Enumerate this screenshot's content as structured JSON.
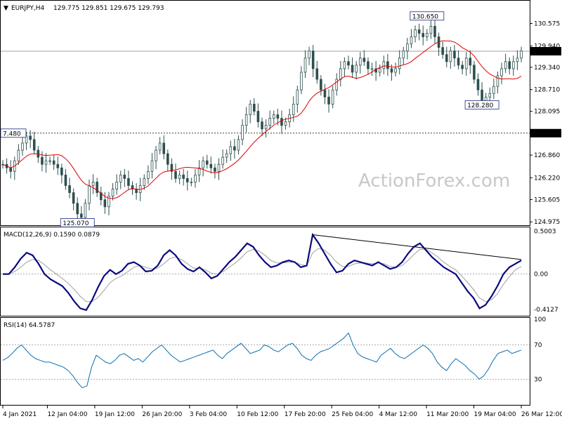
{
  "header": {
    "symbol": "EURJPY,H4",
    "ohlc": "129.775 129.851 129.675 129.793"
  },
  "watermark": "ActionForex.com",
  "colors": {
    "candles": "#2f4f4f",
    "ma": "#e00000",
    "macd": "#0a0a80",
    "signal": "#a0a0a0",
    "rsi": "#0a6fb0",
    "grid_dotted": "#909090",
    "price_line": "#808080",
    "trendline": "#000000"
  },
  "chart_data": [
    {
      "name": "price",
      "type": "candlestick",
      "ylim": [
        124.9,
        131.2
      ],
      "y_ticks": [
        "130.575",
        "129.940",
        "129.340",
        "128.710",
        "128.095",
        "126.860",
        "126.220",
        "125.605",
        "124.975"
      ],
      "current_price": "129.793",
      "support_level": "127.480",
      "annotations": [
        {
          "text": "130.650",
          "x_index": 108,
          "y": 130.65
        },
        {
          "text": "128.280",
          "x_index": 122,
          "y": 128.28
        },
        {
          "text": "125.070",
          "x_index": 19,
          "y": 125.07
        },
        {
          "text": "7.480",
          "x_index": 0,
          "y": 127.48
        }
      ],
      "close_series": [
        126.6,
        126.5,
        126.4,
        126.7,
        127.0,
        127.2,
        127.4,
        127.3,
        127.0,
        126.8,
        126.6,
        126.7,
        126.7,
        126.6,
        126.5,
        126.3,
        126.0,
        125.8,
        125.5,
        125.2,
        125.1,
        125.5,
        126.0,
        126.1,
        125.8,
        125.6,
        125.4,
        125.7,
        125.9,
        126.1,
        126.3,
        126.2,
        126.0,
        125.9,
        125.8,
        126.0,
        126.2,
        126.4,
        126.7,
        127.0,
        127.2,
        126.9,
        126.6,
        126.4,
        126.2,
        126.3,
        126.2,
        126.1,
        126.1,
        126.3,
        126.5,
        126.7,
        126.6,
        126.5,
        126.4,
        126.6,
        126.8,
        126.9,
        127.1,
        127.0,
        127.3,
        127.7,
        128.0,
        128.3,
        128.1,
        127.8,
        127.6,
        127.7,
        127.9,
        128.0,
        127.9,
        127.7,
        127.8,
        128.0,
        128.3,
        128.7,
        129.2,
        129.6,
        129.8,
        129.3,
        129.0,
        128.7,
        128.5,
        128.3,
        128.7,
        129.0,
        129.3,
        129.5,
        129.4,
        129.2,
        129.4,
        129.6,
        129.5,
        129.3,
        129.3,
        129.2,
        129.3,
        129.5,
        129.3,
        129.2,
        129.3,
        129.6,
        129.8,
        130.0,
        130.2,
        130.4,
        130.3,
        130.2,
        130.3,
        130.5,
        130.2,
        129.9,
        129.7,
        129.5,
        129.8,
        129.6,
        129.4,
        129.3,
        129.6,
        129.4,
        129.0,
        128.7,
        128.4,
        128.5,
        128.6,
        128.8,
        129.1,
        129.3,
        129.5,
        129.3,
        129.5,
        129.6,
        129.8
      ]
    },
    {
      "name": "macd",
      "type": "line",
      "label": "MACD(12,26,9) 0.1590 0.0879",
      "ylim": [
        -0.47,
        0.53
      ],
      "y_ticks": [
        "0.5003",
        "0.00",
        "-0.4127"
      ],
      "series": [
        {
          "name": "MACD",
          "values": [
            0.0,
            0.0,
            0.08,
            0.18,
            0.25,
            0.22,
            0.12,
            0.0,
            -0.06,
            -0.1,
            -0.14,
            -0.22,
            -0.32,
            -0.4,
            -0.42,
            -0.3,
            -0.15,
            -0.02,
            0.05,
            0.0,
            0.04,
            0.12,
            0.14,
            0.1,
            0.03,
            0.04,
            0.1,
            0.22,
            0.28,
            0.22,
            0.12,
            0.06,
            0.03,
            0.08,
            0.02,
            -0.05,
            -0.02,
            0.06,
            0.14,
            0.2,
            0.28,
            0.36,
            0.32,
            0.22,
            0.14,
            0.08,
            0.1,
            0.14,
            0.16,
            0.14,
            0.08,
            0.1,
            0.46,
            0.36,
            0.24,
            0.12,
            0.02,
            0.04,
            0.12,
            0.16,
            0.14,
            0.12,
            0.1,
            0.14,
            0.1,
            0.06,
            0.08,
            0.14,
            0.24,
            0.32,
            0.36,
            0.28,
            0.2,
            0.14,
            0.08,
            0.04,
            0.0,
            -0.1,
            -0.2,
            -0.28,
            -0.4,
            -0.36,
            -0.26,
            -0.14,
            0.0,
            0.08,
            0.12,
            0.16
          ]
        },
        {
          "name": "Signal",
          "values": [
            0.0,
            0.0,
            0.03,
            0.08,
            0.14,
            0.17,
            0.16,
            0.11,
            0.05,
            0.0,
            -0.05,
            -0.11,
            -0.18,
            -0.26,
            -0.32,
            -0.32,
            -0.27,
            -0.19,
            -0.1,
            -0.05,
            -0.02,
            0.03,
            0.08,
            0.1,
            0.08,
            0.06,
            0.07,
            0.12,
            0.18,
            0.2,
            0.17,
            0.12,
            0.07,
            0.07,
            0.05,
            0.01,
            0.0,
            0.03,
            0.08,
            0.13,
            0.19,
            0.26,
            0.29,
            0.27,
            0.22,
            0.16,
            0.13,
            0.13,
            0.14,
            0.14,
            0.11,
            0.1,
            0.25,
            0.3,
            0.28,
            0.22,
            0.14,
            0.09,
            0.09,
            0.12,
            0.13,
            0.13,
            0.12,
            0.13,
            0.12,
            0.09,
            0.08,
            0.1,
            0.16,
            0.23,
            0.29,
            0.29,
            0.25,
            0.2,
            0.14,
            0.09,
            0.05,
            -0.02,
            -0.1,
            -0.18,
            -0.28,
            -0.32,
            -0.3,
            -0.23,
            -0.12,
            -0.03,
            0.05,
            0.09
          ]
        }
      ],
      "trendline": [
        [
          52,
          0.46
        ],
        [
          87,
          0.17
        ]
      ]
    },
    {
      "name": "rsi",
      "type": "line",
      "label": "RSI(14) 64.5787",
      "ylim": [
        0,
        100
      ],
      "y_ticks": [
        "100",
        "70",
        "30"
      ],
      "levels": [
        70,
        30
      ],
      "series": [
        {
          "name": "RSI",
          "values": [
            52,
            55,
            60,
            66,
            70,
            64,
            58,
            54,
            52,
            50,
            50,
            48,
            46,
            44,
            40,
            34,
            26,
            20,
            22,
            44,
            58,
            54,
            50,
            48,
            52,
            58,
            60,
            56,
            52,
            54,
            50,
            56,
            62,
            66,
            70,
            64,
            58,
            54,
            50,
            52,
            54,
            56,
            58,
            60,
            62,
            64,
            58,
            54,
            60,
            64,
            68,
            72,
            66,
            60,
            62,
            64,
            70,
            68,
            64,
            62,
            66,
            70,
            72,
            66,
            58,
            54,
            52,
            58,
            62,
            64,
            66,
            70,
            74,
            78,
            84,
            70,
            60,
            56,
            54,
            52,
            50,
            58,
            62,
            66,
            60,
            56,
            54,
            58,
            62,
            66,
            70,
            66,
            60,
            50,
            44,
            40,
            48,
            54,
            50,
            46,
            40,
            36,
            30,
            34,
            42,
            52,
            60,
            62,
            64,
            60,
            62,
            64
          ]
        }
      ]
    }
  ],
  "x_axis_labels": [
    "4 Jan 2021",
    "12 Jan 04:00",
    "19 Jan 12:00",
    "26 Jan 20:00",
    "3 Feb 04:00",
    "10 Feb 12:00",
    "17 Feb 20:00",
    "25 Feb 04:00",
    "4 Mar 12:00",
    "11 Mar 20:00",
    "19 Mar 04:00",
    "26 Mar 12:00"
  ]
}
